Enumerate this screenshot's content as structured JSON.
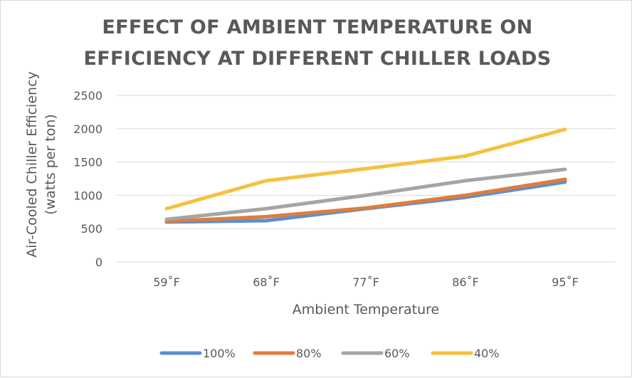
{
  "chart_data": {
    "type": "line",
    "title_lines": [
      "EFFECT OF AMBIENT TEMPERATURE ON",
      "EFFICIENCY AT DIFFERENT CHILLER LOADS"
    ],
    "xlabel": "Ambient Temperature",
    "ylabel_lines": [
      "Air-Cooled Chiller Efficiency",
      "(watts per ton)"
    ],
    "categories": [
      "59˚F",
      "68˚F",
      "77˚F",
      "86˚F",
      "95˚F"
    ],
    "yticks": [
      "0",
      "500",
      "1000",
      "1500",
      "2000",
      "2500"
    ],
    "ylim": [
      0,
      2500
    ],
    "grid": true,
    "legend_position": "bottom",
    "series": [
      {
        "name": "100%",
        "color": "#5b8fcf",
        "values": [
          600,
          620,
          800,
          970,
          1200
        ]
      },
      {
        "name": "80%",
        "color": "#dd7d3e",
        "values": [
          610,
          680,
          810,
          1000,
          1240
        ]
      },
      {
        "name": "60%",
        "color": "#a5a5a5",
        "values": [
          640,
          800,
          1000,
          1220,
          1390
        ]
      },
      {
        "name": "40%",
        "color": "#f4c23e",
        "values": [
          800,
          1220,
          1400,
          1590,
          1990
        ]
      }
    ]
  }
}
